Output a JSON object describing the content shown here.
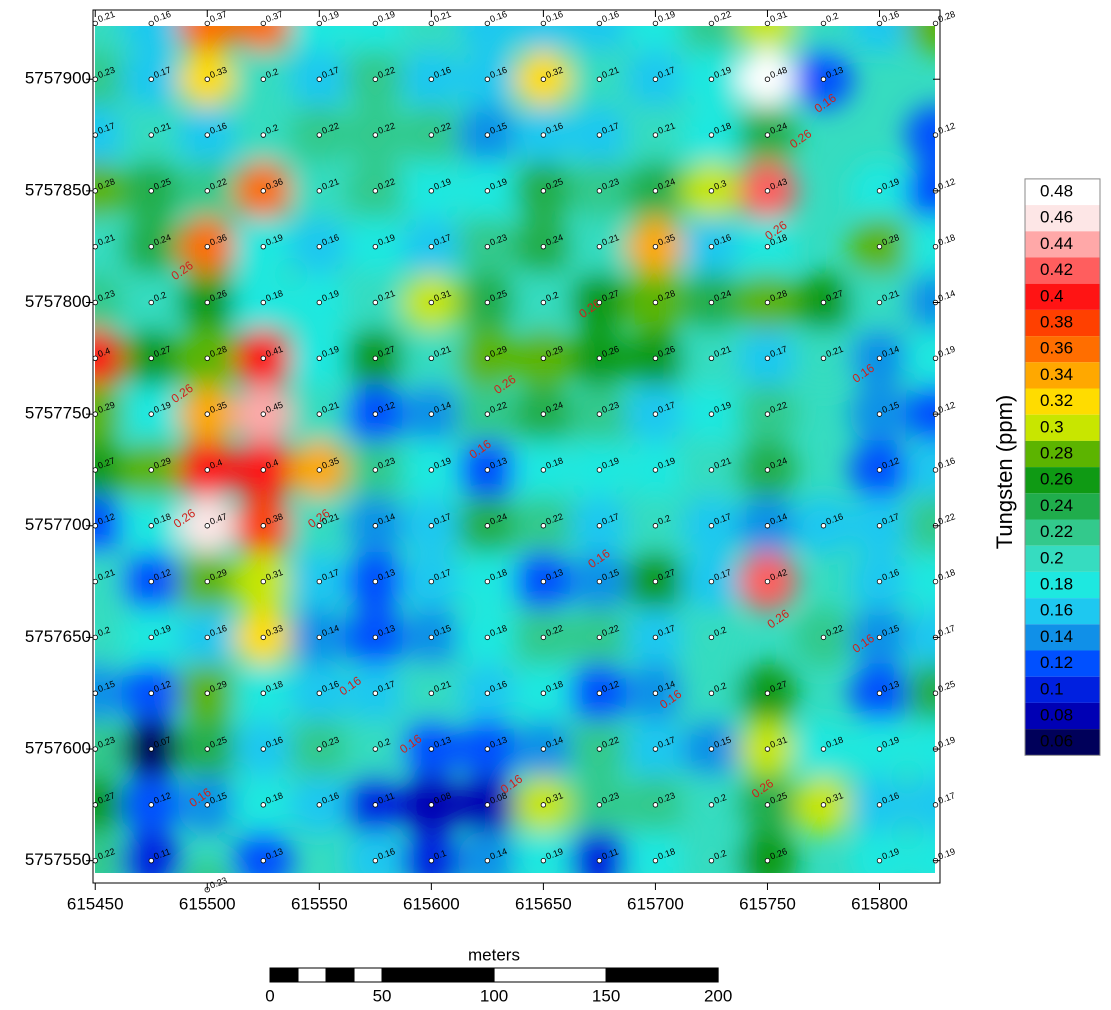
{
  "chart_data": {
    "type": "contour",
    "xlim": [
      615449,
      615827
    ],
    "ylim": [
      5757540,
      5757931
    ],
    "xticks": [
      615450,
      615500,
      615550,
      615600,
      615650,
      615700,
      615750,
      615800
    ],
    "yticks": [
      5757550,
      5757600,
      5757650,
      5757700,
      5757750,
      5757800,
      5757850,
      5757900
    ],
    "colorbar": {
      "title": "Tungsten (ppm)",
      "levels": [
        0.48,
        0.46,
        0.44,
        0.42,
        0.4,
        0.38,
        0.36,
        0.34,
        0.32,
        0.3,
        0.28,
        0.26,
        0.24,
        0.22,
        0.2,
        0.18,
        0.16,
        0.14,
        0.12,
        0.1,
        0.08,
        0.06
      ],
      "colors": [
        "#ffffff",
        "#fde6e6",
        "#ffa8a8",
        "#ff5e5e",
        "#ff1414",
        "#ff4000",
        "#ff6e00",
        "#ffa800",
        "#ffdc00",
        "#c8e600",
        "#5cb400",
        "#0f9a14",
        "#20ad4c",
        "#33c98c",
        "#36dcc0",
        "#1ee8e0",
        "#1ec8f0",
        "#1090e8",
        "#0050ff",
        "#0020e0",
        "#0000b4",
        "#00005a"
      ]
    },
    "points": [
      [
        615450,
        5757925,
        0.21
      ],
      [
        615475,
        5757925,
        0.16
      ],
      [
        615500,
        5757925,
        0.37
      ],
      [
        615525,
        5757925,
        0.37
      ],
      [
        615550,
        5757925,
        0.19
      ],
      [
        615575,
        5757925,
        0.19
      ],
      [
        615600,
        5757925,
        0.21
      ],
      [
        615625,
        5757925,
        0.16
      ],
      [
        615650,
        5757925,
        0.16
      ],
      [
        615675,
        5757925,
        0.16
      ],
      [
        615700,
        5757925,
        0.19
      ],
      [
        615725,
        5757925,
        0.22
      ],
      [
        615750,
        5757925,
        0.31
      ],
      [
        615775,
        5757925,
        0.2
      ],
      [
        615800,
        5757925,
        0.16
      ],
      [
        615825,
        5757925,
        0.28
      ],
      [
        615450,
        5757900,
        0.23
      ],
      [
        615475,
        5757900,
        0.17
      ],
      [
        615500,
        5757900,
        0.33
      ],
      [
        615525,
        5757900,
        0.2
      ],
      [
        615550,
        5757900,
        0.17
      ],
      [
        615575,
        5757900,
        0.22
      ],
      [
        615600,
        5757900,
        0.16
      ],
      [
        615625,
        5757900,
        0.16
      ],
      [
        615650,
        5757900,
        0.32
      ],
      [
        615675,
        5757900,
        0.21
      ],
      [
        615700,
        5757900,
        0.17
      ],
      [
        615725,
        5757900,
        0.19
      ],
      [
        615750,
        5757900,
        0.48
      ],
      [
        615775,
        5757900,
        0.13
      ],
      [
        615450,
        5757875,
        0.17
      ],
      [
        615475,
        5757875,
        0.21
      ],
      [
        615500,
        5757875,
        0.16
      ],
      [
        615525,
        5757875,
        0.2
      ],
      [
        615550,
        5757875,
        0.22
      ],
      [
        615575,
        5757875,
        0.22
      ],
      [
        615600,
        5757875,
        0.22
      ],
      [
        615625,
        5757875,
        0.15
      ],
      [
        615650,
        5757875,
        0.16
      ],
      [
        615675,
        5757875,
        0.17
      ],
      [
        615700,
        5757875,
        0.21
      ],
      [
        615725,
        5757875,
        0.18
      ],
      [
        615750,
        5757875,
        0.24
      ],
      [
        615825,
        5757875,
        0.12
      ],
      [
        615450,
        5757850,
        0.28
      ],
      [
        615475,
        5757850,
        0.25
      ],
      [
        615500,
        5757850,
        0.22
      ],
      [
        615525,
        5757850,
        0.36
      ],
      [
        615550,
        5757850,
        0.21
      ],
      [
        615575,
        5757850,
        0.22
      ],
      [
        615600,
        5757850,
        0.19
      ],
      [
        615625,
        5757850,
        0.19
      ],
      [
        615650,
        5757850,
        0.25
      ],
      [
        615675,
        5757850,
        0.23
      ],
      [
        615700,
        5757850,
        0.24
      ],
      [
        615725,
        5757850,
        0.3
      ],
      [
        615750,
        5757850,
        0.43
      ],
      [
        615800,
        5757850,
        0.19
      ],
      [
        615825,
        5757850,
        0.12
      ],
      [
        615450,
        5757825,
        0.21
      ],
      [
        615475,
        5757825,
        0.24
      ],
      [
        615500,
        5757825,
        0.36
      ],
      [
        615525,
        5757825,
        0.19
      ],
      [
        615550,
        5757825,
        0.16
      ],
      [
        615575,
        5757825,
        0.19
      ],
      [
        615600,
        5757825,
        0.17
      ],
      [
        615625,
        5757825,
        0.23
      ],
      [
        615650,
        5757825,
        0.24
      ],
      [
        615675,
        5757825,
        0.21
      ],
      [
        615700,
        5757825,
        0.35
      ],
      [
        615725,
        5757825,
        0.16
      ],
      [
        615750,
        5757825,
        0.18
      ],
      [
        615800,
        5757825,
        0.28
      ],
      [
        615825,
        5757825,
        0.18
      ],
      [
        615450,
        5757800,
        0.23
      ],
      [
        615475,
        5757800,
        0.2
      ],
      [
        615500,
        5757800,
        0.26
      ],
      [
        615525,
        5757800,
        0.18
      ],
      [
        615550,
        5757800,
        0.19
      ],
      [
        615575,
        5757800,
        0.21
      ],
      [
        615600,
        5757800,
        0.31
      ],
      [
        615625,
        5757800,
        0.25
      ],
      [
        615650,
        5757800,
        0.2
      ],
      [
        615675,
        5757800,
        0.27
      ],
      [
        615700,
        5757800,
        0.28
      ],
      [
        615725,
        5757800,
        0.24
      ],
      [
        615750,
        5757800,
        0.28
      ],
      [
        615775,
        5757800,
        0.27
      ],
      [
        615800,
        5757800,
        0.21
      ],
      [
        615825,
        5757800,
        0.14
      ],
      [
        615450,
        5757775,
        0.4
      ],
      [
        615475,
        5757775,
        0.27
      ],
      [
        615500,
        5757775,
        0.28
      ],
      [
        615525,
        5757775,
        0.41
      ],
      [
        615550,
        5757775,
        0.19
      ],
      [
        615575,
        5757775,
        0.27
      ],
      [
        615600,
        5757775,
        0.21
      ],
      [
        615625,
        5757775,
        0.29
      ],
      [
        615650,
        5757775,
        0.29
      ],
      [
        615675,
        5757775,
        0.26
      ],
      [
        615700,
        5757775,
        0.26
      ],
      [
        615725,
        5757775,
        0.21
      ],
      [
        615750,
        5757775,
        0.17
      ],
      [
        615775,
        5757775,
        0.21
      ],
      [
        615800,
        5757775,
        0.14
      ],
      [
        615825,
        5757775,
        0.19
      ],
      [
        615450,
        5757750,
        0.29
      ],
      [
        615475,
        5757750,
        0.19
      ],
      [
        615500,
        5757750,
        0.35
      ],
      [
        615525,
        5757750,
        0.45
      ],
      [
        615550,
        5757750,
        0.21
      ],
      [
        615575,
        5757750,
        0.12
      ],
      [
        615600,
        5757750,
        0.14
      ],
      [
        615625,
        5757750,
        0.22
      ],
      [
        615650,
        5757750,
        0.24
      ],
      [
        615675,
        5757750,
        0.23
      ],
      [
        615700,
        5757750,
        0.17
      ],
      [
        615725,
        5757750,
        0.19
      ],
      [
        615750,
        5757750,
        0.22
      ],
      [
        615800,
        5757750,
        0.15
      ],
      [
        615825,
        5757750,
        0.12
      ],
      [
        615450,
        5757725,
        0.27
      ],
      [
        615475,
        5757725,
        0.29
      ],
      [
        615500,
        5757725,
        0.4
      ],
      [
        615525,
        5757725,
        0.4
      ],
      [
        615550,
        5757725,
        0.35
      ],
      [
        615575,
        5757725,
        0.23
      ],
      [
        615600,
        5757725,
        0.19
      ],
      [
        615625,
        5757725,
        0.13
      ],
      [
        615650,
        5757725,
        0.18
      ],
      [
        615675,
        5757725,
        0.19
      ],
      [
        615700,
        5757725,
        0.19
      ],
      [
        615725,
        5757725,
        0.21
      ],
      [
        615750,
        5757725,
        0.24
      ],
      [
        615800,
        5757725,
        0.12
      ],
      [
        615825,
        5757725,
        0.16
      ],
      [
        615450,
        5757700,
        0.12
      ],
      [
        615475,
        5757700,
        0.18
      ],
      [
        615500,
        5757700,
        0.47
      ],
      [
        615525,
        5757700,
        0.38
      ],
      [
        615550,
        5757700,
        0.21
      ],
      [
        615575,
        5757700,
        0.14
      ],
      [
        615600,
        5757700,
        0.17
      ],
      [
        615625,
        5757700,
        0.24
      ],
      [
        615650,
        5757700,
        0.22
      ],
      [
        615675,
        5757700,
        0.17
      ],
      [
        615700,
        5757700,
        0.2
      ],
      [
        615725,
        5757700,
        0.17
      ],
      [
        615750,
        5757700,
        0.14
      ],
      [
        615775,
        5757700,
        0.16
      ],
      [
        615800,
        5757700,
        0.17
      ],
      [
        615825,
        5757700,
        0.22
      ],
      [
        615450,
        5757675,
        0.21
      ],
      [
        615475,
        5757675,
        0.12
      ],
      [
        615500,
        5757675,
        0.29
      ],
      [
        615525,
        5757675,
        0.31
      ],
      [
        615550,
        5757675,
        0.17
      ],
      [
        615575,
        5757675,
        0.13
      ],
      [
        615600,
        5757675,
        0.17
      ],
      [
        615625,
        5757675,
        0.18
      ],
      [
        615650,
        5757675,
        0.13
      ],
      [
        615675,
        5757675,
        0.15
      ],
      [
        615700,
        5757675,
        0.27
      ],
      [
        615725,
        5757675,
        0.17
      ],
      [
        615750,
        5757675,
        0.42
      ],
      [
        615800,
        5757675,
        0.16
      ],
      [
        615825,
        5757675,
        0.18
      ],
      [
        615450,
        5757650,
        0.2
      ],
      [
        615475,
        5757650,
        0.19
      ],
      [
        615500,
        5757650,
        0.16
      ],
      [
        615525,
        5757650,
        0.33
      ],
      [
        615550,
        5757650,
        0.14
      ],
      [
        615575,
        5757650,
        0.13
      ],
      [
        615600,
        5757650,
        0.15
      ],
      [
        615625,
        5757650,
        0.18
      ],
      [
        615650,
        5757650,
        0.22
      ],
      [
        615675,
        5757650,
        0.22
      ],
      [
        615700,
        5757650,
        0.17
      ],
      [
        615725,
        5757650,
        0.2
      ],
      [
        615775,
        5757650,
        0.22
      ],
      [
        615800,
        5757650,
        0.15
      ],
      [
        615825,
        5757650,
        0.17
      ],
      [
        615450,
        5757625,
        0.15
      ],
      [
        615475,
        5757625,
        0.12
      ],
      [
        615500,
        5757625,
        0.29
      ],
      [
        615525,
        5757625,
        0.18
      ],
      [
        615550,
        5757625,
        0.16
      ],
      [
        615575,
        5757625,
        0.17
      ],
      [
        615600,
        5757625,
        0.21
      ],
      [
        615625,
        5757625,
        0.16
      ],
      [
        615650,
        5757625,
        0.18
      ],
      [
        615675,
        5757625,
        0.12
      ],
      [
        615700,
        5757625,
        0.14
      ],
      [
        615725,
        5757625,
        0.2
      ],
      [
        615750,
        5757625,
        0.27
      ],
      [
        615800,
        5757625,
        0.13
      ],
      [
        615825,
        5757625,
        0.25
      ],
      [
        615450,
        5757600,
        0.23
      ],
      [
        615475,
        5757600,
        0.07
      ],
      [
        615500,
        5757600,
        0.25
      ],
      [
        615525,
        5757600,
        0.16
      ],
      [
        615550,
        5757600,
        0.23
      ],
      [
        615575,
        5757600,
        0.2
      ],
      [
        615600,
        5757600,
        0.13
      ],
      [
        615625,
        5757600,
        0.13
      ],
      [
        615650,
        5757600,
        0.14
      ],
      [
        615675,
        5757600,
        0.22
      ],
      [
        615700,
        5757600,
        0.17
      ],
      [
        615725,
        5757600,
        0.15
      ],
      [
        615750,
        5757600,
        0.31
      ],
      [
        615775,
        5757600,
        0.18
      ],
      [
        615800,
        5757600,
        0.19
      ],
      [
        615825,
        5757600,
        0.19
      ],
      [
        615450,
        5757575,
        0.27
      ],
      [
        615475,
        5757575,
        0.12
      ],
      [
        615500,
        5757575,
        0.15
      ],
      [
        615525,
        5757575,
        0.18
      ],
      [
        615550,
        5757575,
        0.16
      ],
      [
        615575,
        5757575,
        0.11
      ],
      [
        615600,
        5757575,
        0.08
      ],
      [
        615625,
        5757575,
        0.08
      ],
      [
        615650,
        5757575,
        0.31
      ],
      [
        615675,
        5757575,
        0.23
      ],
      [
        615700,
        5757575,
        0.23
      ],
      [
        615725,
        5757575,
        0.2
      ],
      [
        615750,
        5757575,
        0.25
      ],
      [
        615775,
        5757575,
        0.31
      ],
      [
        615800,
        5757575,
        0.16
      ],
      [
        615825,
        5757575,
        0.17
      ],
      [
        615450,
        5757550,
        0.22
      ],
      [
        615475,
        5757550,
        0.11
      ],
      [
        615525,
        5757550,
        0.13
      ],
      [
        615575,
        5757550,
        0.16
      ],
      [
        615600,
        5757550,
        0.1
      ],
      [
        615625,
        5757550,
        0.14
      ],
      [
        615650,
        5757550,
        0.19
      ],
      [
        615675,
        5757550,
        0.11
      ],
      [
        615700,
        5757550,
        0.18
      ],
      [
        615725,
        5757550,
        0.2
      ],
      [
        615750,
        5757550,
        0.26
      ],
      [
        615800,
        5757550,
        0.19
      ],
      [
        615825,
        5757550,
        0.19
      ],
      [
        615500,
        5757537,
        0.23
      ]
    ],
    "contour_labels": [
      [
        615489,
        5757814,
        0.26
      ],
      [
        615489,
        5757759,
        0.26
      ],
      [
        615490,
        5757703,
        0.26
      ],
      [
        615550,
        5757703,
        0.26
      ],
      [
        615765,
        5757873,
        0.26
      ],
      [
        615776,
        5757889,
        0.16
      ],
      [
        615754,
        5757832,
        0.26
      ],
      [
        615671,
        5757797,
        0.26
      ],
      [
        615633,
        5757763,
        0.26
      ],
      [
        615622,
        5757734,
        0.16
      ],
      [
        615793,
        5757768,
        0.16
      ],
      [
        615675,
        5757685,
        0.16
      ],
      [
        615755,
        5757658,
        0.26
      ],
      [
        615793,
        5757647,
        0.16
      ],
      [
        615564,
        5757628,
        0.16
      ],
      [
        615591,
        5757602,
        0.16
      ],
      [
        615636,
        5757584,
        0.16
      ],
      [
        615707,
        5757622,
        0.16
      ],
      [
        615497,
        5757578,
        0.16
      ],
      [
        615748,
        5757582,
        0.26
      ]
    ],
    "scale_bar": {
      "title": "meters",
      "ticks": [
        0,
        50,
        100,
        150,
        200
      ]
    }
  }
}
